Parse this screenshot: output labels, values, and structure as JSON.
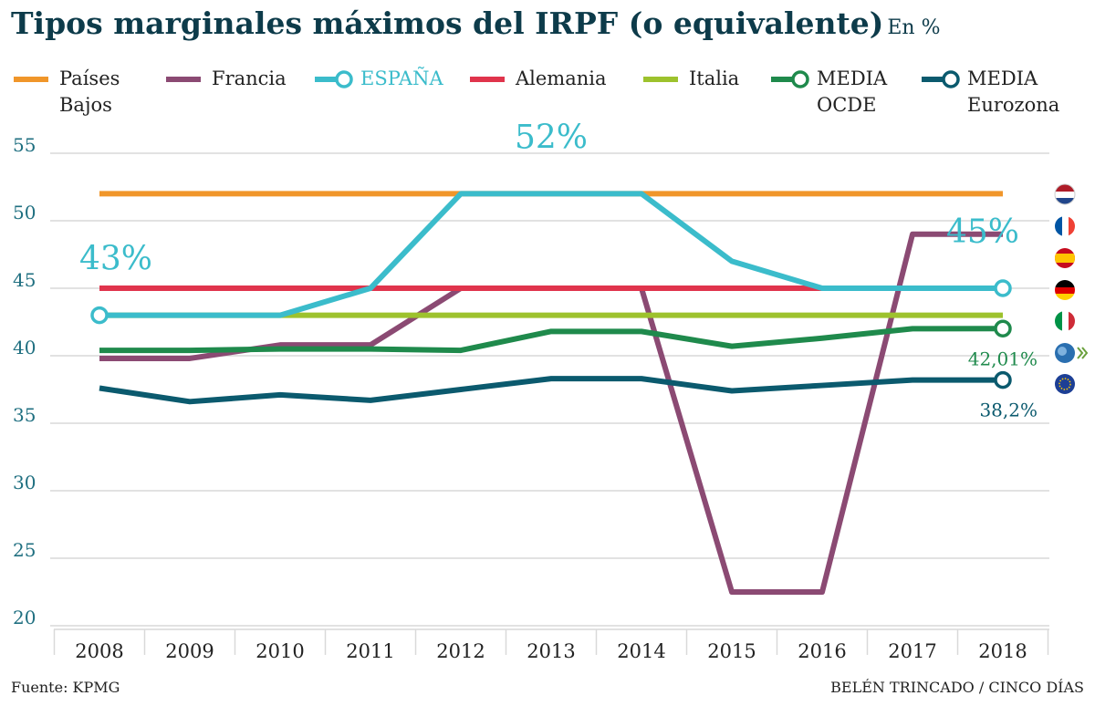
{
  "chart_data": {
    "type": "line",
    "title": "Tipos marginales máximos del IRPF (o equivalente)",
    "subtitle": "En %",
    "source": "Fuente: KPMG",
    "credit": "BELÉN TRINCADO / CINCO DÍAS",
    "categories": [
      "2008",
      "2009",
      "2010",
      "2011",
      "2012",
      "2013",
      "2014",
      "2015",
      "2016",
      "2017",
      "2018"
    ],
    "ylim": [
      20,
      55
    ],
    "yticks": [
      20,
      25,
      30,
      35,
      40,
      45,
      50,
      55
    ],
    "grid": true,
    "series": [
      {
        "name": "Países Bajos",
        "color": "#f0962a",
        "values": [
          52,
          52,
          52,
          52,
          52,
          52,
          52,
          52,
          52,
          52,
          52
        ]
      },
      {
        "name": "Francia",
        "color": "#8b4a73",
        "values": [
          39.8,
          39.8,
          40.8,
          40.8,
          45,
          45,
          45,
          22.5,
          22.5,
          49,
          49
        ]
      },
      {
        "name": "Alemania",
        "color": "#e0344c",
        "values": [
          45,
          45,
          45,
          45,
          45,
          45,
          45,
          45,
          45,
          45,
          45
        ]
      },
      {
        "name": "Italia",
        "color": "#9dc22d",
        "values": [
          43,
          43,
          43,
          43,
          43,
          43,
          43,
          43,
          43,
          43,
          43
        ]
      },
      {
        "name": "ESPAÑA",
        "color": "#3bbccb",
        "end_marker": true,
        "values": [
          43,
          43,
          43,
          45,
          52,
          52,
          52,
          47,
          45,
          45,
          45
        ],
        "value_labels": [
          "43%",
          null,
          null,
          null,
          null,
          "52%",
          null,
          null,
          null,
          null,
          "45%"
        ]
      },
      {
        "name": "MEDIA OCDE",
        "color": "#1f8a4c",
        "end_marker": true,
        "values": [
          40.4,
          40.4,
          40.5,
          40.5,
          40.4,
          41.8,
          41.8,
          40.7,
          41.3,
          42,
          42.01
        ],
        "value_labels": [
          null,
          null,
          null,
          null,
          null,
          null,
          null,
          null,
          null,
          null,
          "42,01%"
        ]
      },
      {
        "name": "MEDIA Eurozona",
        "color": "#0b5a6e",
        "end_marker": true,
        "values": [
          37.6,
          36.6,
          37.1,
          36.7,
          37.5,
          38.3,
          38.3,
          37.4,
          37.8,
          38.2,
          38.2
        ],
        "value_labels": [
          null,
          null,
          null,
          null,
          null,
          null,
          null,
          null,
          null,
          null,
          "38,2%"
        ]
      }
    ]
  }
}
